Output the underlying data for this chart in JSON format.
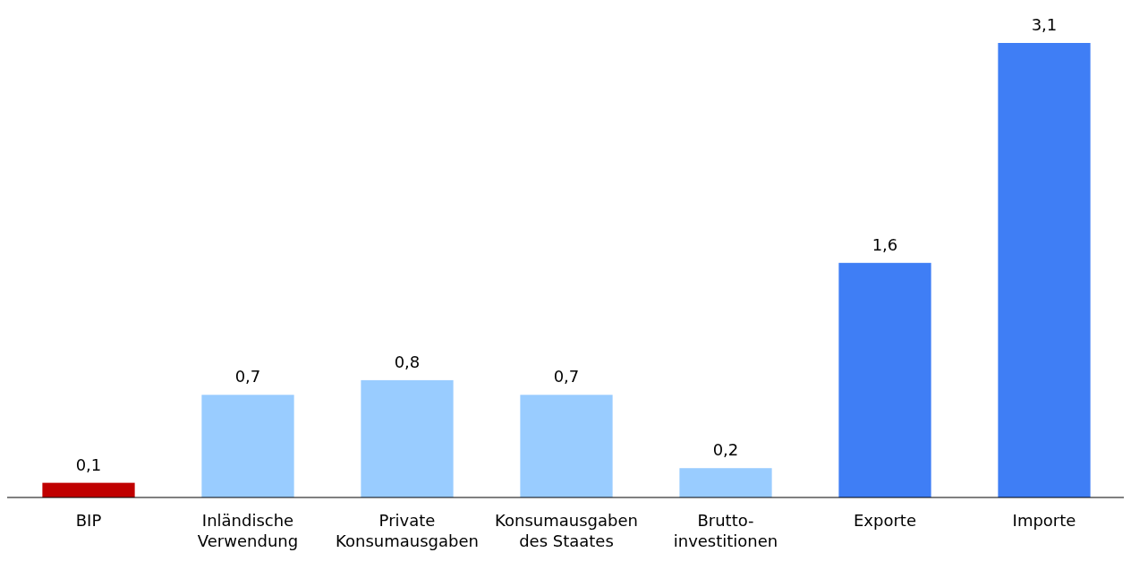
{
  "chart_data": {
    "type": "bar",
    "categories": [
      "BIP",
      "Inländische Verwendung",
      "Private Konsumausgaben",
      "Konsumausgaben des Staates",
      "Brutto-investitionen",
      "Exporte",
      "Importe"
    ],
    "values": [
      0.1,
      0.7,
      0.8,
      0.7,
      0.2,
      1.6,
      3.1
    ],
    "colors": [
      "#c00000",
      "#99ccff",
      "#99ccff",
      "#99ccff",
      "#99ccff",
      "#3f7ef5",
      "#3f7ef5"
    ],
    "value_labels": [
      "0,1",
      "0,7",
      "0,8",
      "0,7",
      "0,2",
      "1,6",
      "3,1"
    ]
  }
}
